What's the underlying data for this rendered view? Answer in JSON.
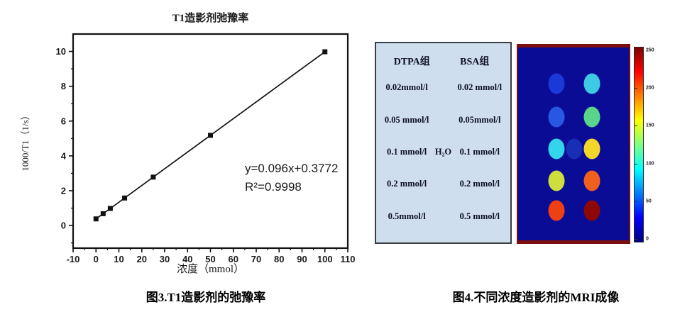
{
  "figure3": {
    "caption": "图3.T1造影剂的弛豫率"
  },
  "chart_data": {
    "type": "scatter",
    "title": "T1造影剂弛豫率",
    "xlabel": "浓度（mmol）",
    "ylabel": "1000/T1（1/s）",
    "x": [
      0,
      3.125,
      6.25,
      12.5,
      25,
      50,
      100
    ],
    "y": [
      0.38,
      0.68,
      0.98,
      1.58,
      2.78,
      5.18,
      9.98
    ],
    "fit": {
      "equation": "y=0.096x+0.3772",
      "r_squared": "R²=0.9998",
      "slope": 0.096,
      "intercept": 0.3772
    },
    "xlim": [
      -10,
      110
    ],
    "ylim": [
      -1.3,
      11.0
    ],
    "xticks": [
      -10,
      0,
      10,
      20,
      30,
      40,
      50,
      60,
      70,
      80,
      90,
      100,
      110
    ],
    "yticks": [
      0,
      2,
      4,
      6,
      8,
      10
    ],
    "x_minor_step": 5,
    "y_minor_step": 1,
    "grid": false,
    "marker": "square",
    "line": true,
    "marker_color": "#111111",
    "line_color": "#111111"
  },
  "figure4": {
    "caption": "图4.不同浓度造影剂的MRI成像",
    "table": {
      "headers": [
        "DTPA组",
        "BSA组"
      ],
      "rows": [
        {
          "left": "0.02mmol/l",
          "middle": "",
          "right": "0.02 mmol/l"
        },
        {
          "left": "0.05 mmol/l",
          "middle": "",
          "right": "0.05mmol/l"
        },
        {
          "left": "0.1 mmol/l",
          "middle": "H₂O",
          "right": "0.1 mmol/l"
        },
        {
          "left": "0.2 mmol/l",
          "middle": "",
          "right": "0.2 mmol/l"
        },
        {
          "left": "0.5mmol/l",
          "middle": "",
          "right": "0.5 mmol/l"
        }
      ]
    },
    "mri": {
      "background_color": "#0a0c96",
      "border_color": "#7b0f0f",
      "wells": [
        {
          "concentration": "0.02",
          "dtpa_color": "#1b38d9",
          "bsa_color": "#3ec9e4"
        },
        {
          "concentration": "0.05",
          "dtpa_color": "#2857e2",
          "bsa_color": "#58d58a"
        },
        {
          "concentration": "0.1",
          "dtpa_color": "#33d4ec",
          "bsa_color": "#f2d62a",
          "middle_label": "H₂O",
          "middle_color": "#182fb5"
        },
        {
          "concentration": "0.2",
          "dtpa_color": "#cede3c",
          "bsa_color": "#ef5f1e"
        },
        {
          "concentration": "0.5",
          "dtpa_color": "#ee4012",
          "bsa_color": "#8d0707"
        }
      ],
      "colorbar": {
        "ticks": [
          "250",
          "200",
          "150",
          "100",
          "50",
          "0"
        ]
      }
    }
  }
}
